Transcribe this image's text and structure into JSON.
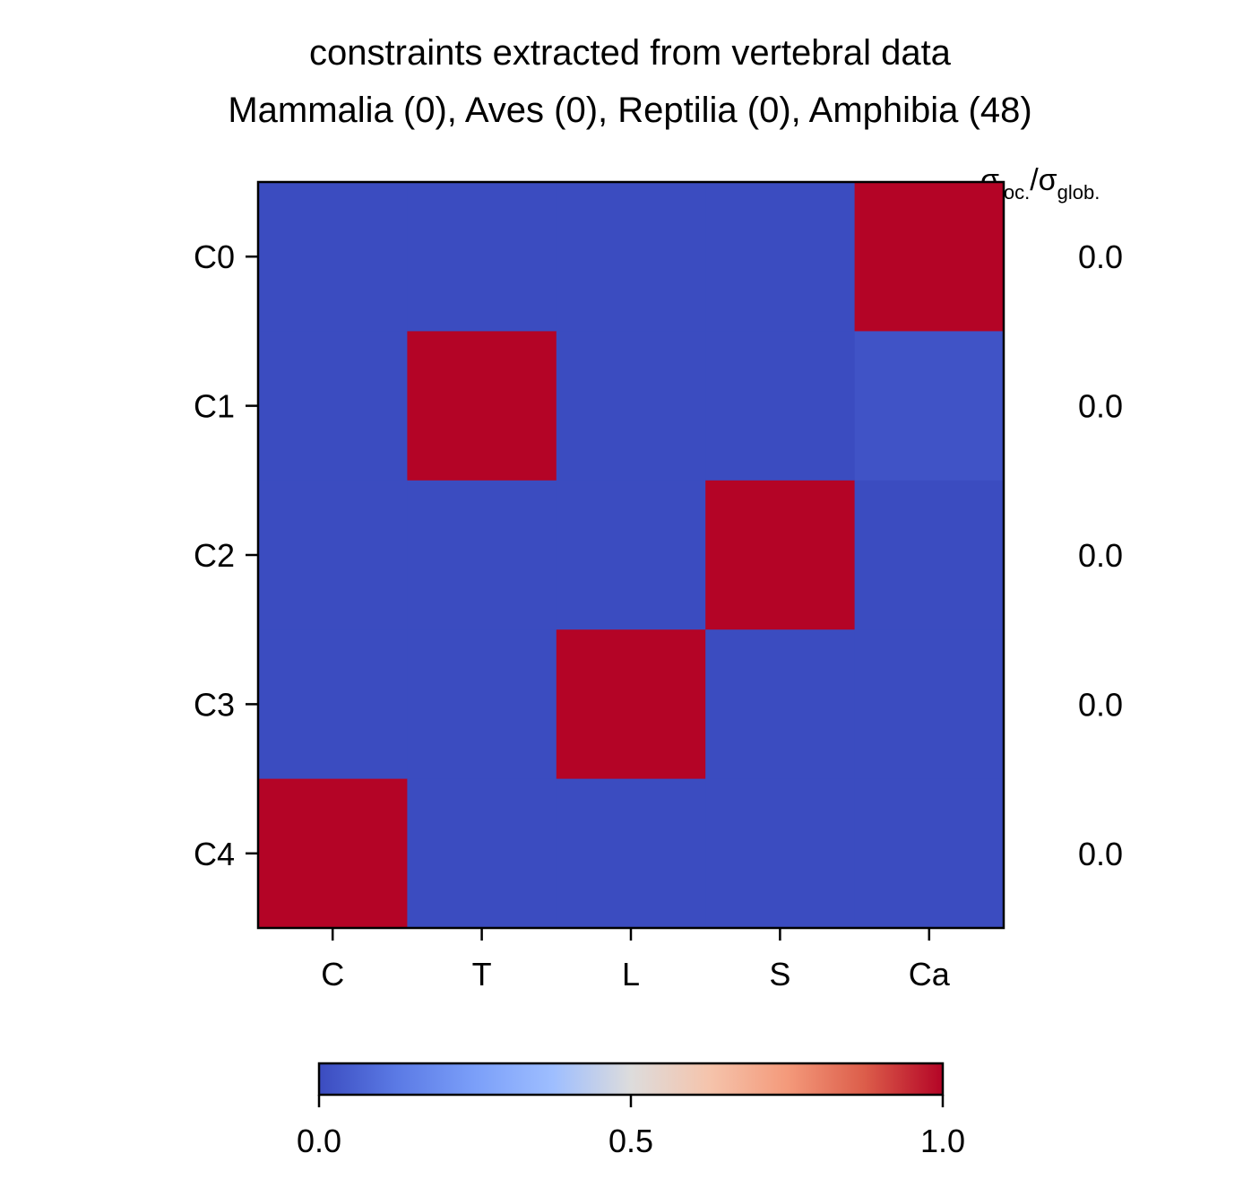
{
  "chart_data": {
    "type": "heatmap",
    "title": "constraints extracted from vertebral data",
    "subtitle": "Mammalia (0), Aves (0), Reptilia (0), Amphibia (48)",
    "x_categories": [
      "C",
      "T",
      "L",
      "S",
      "Ca"
    ],
    "y_categories": [
      "C0",
      "C1",
      "C2",
      "C3",
      "C4"
    ],
    "values": [
      [
        0.0,
        0.0,
        0.0,
        0.0,
        1.0
      ],
      [
        0.0,
        1.0,
        0.0,
        0.0,
        0.02
      ],
      [
        0.0,
        0.0,
        0.0,
        1.0,
        0.0
      ],
      [
        0.0,
        0.0,
        1.0,
        0.0,
        0.0
      ],
      [
        1.0,
        0.0,
        0.0,
        0.0,
        0.0
      ]
    ],
    "right_column": {
      "header_main": "σ",
      "header_sub1": "loc.",
      "header_slash": "/σ",
      "header_sub2": "glob.",
      "values": [
        "0.0",
        "0.0",
        "0.0",
        "0.0",
        "0.0"
      ]
    },
    "colormap": "coolwarm",
    "colorbar": {
      "range": [
        0.0,
        1.0
      ],
      "ticks": [
        0.0,
        0.5,
        1.0
      ],
      "tick_labels": [
        "0.0",
        "0.5",
        "1.0"
      ],
      "orientation": "horizontal"
    },
    "grid": false
  }
}
